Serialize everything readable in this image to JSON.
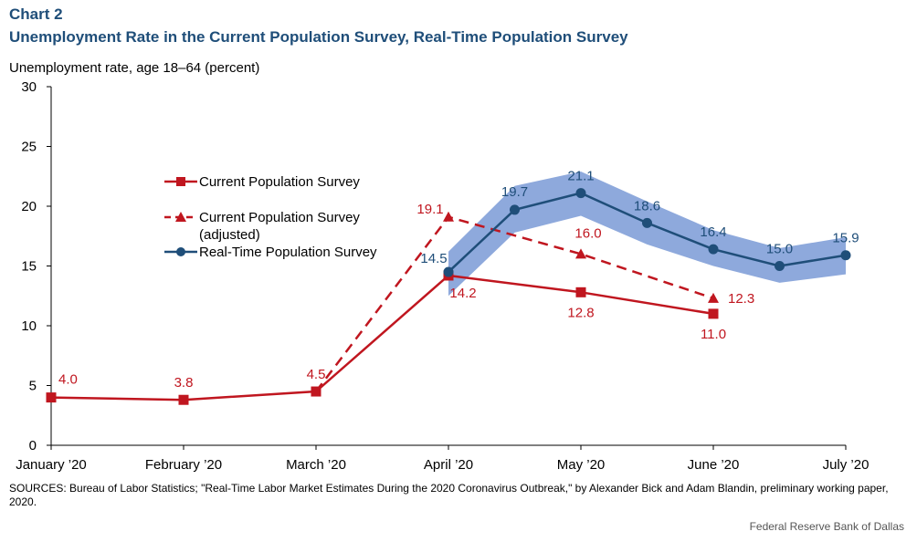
{
  "header": {
    "chart_label": "Chart 2",
    "title": "Unemployment Rate in the Current Population Survey, Real-Time Population Survey"
  },
  "footer": {
    "sources": "SOURCES: Bureau of Labor Statistics; \"Real-Time Labor Market Estimates During the 2020 Coronavirus Outbreak,\" by Alexander Bick and Adam Blandin, preliminary working paper, 2020.",
    "credit": "Federal Reserve Bank of Dallas"
  },
  "colors": {
    "cps": "#c0161f",
    "rps": "#1f4e79",
    "band": "#8ea9dc",
    "axis": "#000000"
  },
  "chart_data": {
    "type": "line",
    "title": "Unemployment Rate in the Current Population Survey, Real-Time Population Survey",
    "ylabel": "Unemployment rate, age 18–64 (percent)",
    "xlabel": "",
    "ylim": [
      0,
      30
    ],
    "yticks": [
      0,
      5,
      10,
      15,
      20,
      25,
      30
    ],
    "xlim": [
      0,
      6
    ],
    "xticks": [
      {
        "x": 0,
        "label": "January ’20"
      },
      {
        "x": 1,
        "label": "February ’20"
      },
      {
        "x": 2,
        "label": "March ’20"
      },
      {
        "x": 3,
        "label": "April ’20"
      },
      {
        "x": 4,
        "label": "May ’20"
      },
      {
        "x": 5,
        "label": "June ’20"
      },
      {
        "x": 6,
        "label": "July ’20"
      }
    ],
    "legend_position": "left-middle",
    "grid": false,
    "series": [
      {
        "name": "Current Population Survey",
        "style": "solid",
        "marker": "square",
        "points": [
          {
            "x": 0,
            "y": 4.0,
            "label": "4.0"
          },
          {
            "x": 1,
            "y": 3.8,
            "label": "3.8"
          },
          {
            "x": 2,
            "y": 4.5,
            "label": "4.5"
          },
          {
            "x": 3,
            "y": 14.2,
            "label": "14.2"
          },
          {
            "x": 4,
            "y": 12.8,
            "label": "12.8"
          },
          {
            "x": 5,
            "y": 11.0,
            "label": "11.0"
          }
        ]
      },
      {
        "name": "Current Population Survey (adjusted)",
        "style": "dashed",
        "marker": "triangle",
        "points": [
          {
            "x": 2,
            "y": 4.5,
            "label": null
          },
          {
            "x": 3,
            "y": 19.1,
            "label": "19.1"
          },
          {
            "x": 4,
            "y": 16.0,
            "label": "16.0"
          },
          {
            "x": 5,
            "y": 12.3,
            "label": "12.3"
          }
        ]
      },
      {
        "name": "Real-Time Population Survey",
        "style": "solid",
        "marker": "circle",
        "points": [
          {
            "x": 3,
            "y": 14.5,
            "label": "14.5"
          },
          {
            "x": 3.5,
            "y": 19.7,
            "label": "19.7"
          },
          {
            "x": 4,
            "y": 21.1,
            "label": "21.1"
          },
          {
            "x": 4.5,
            "y": 18.6,
            "label": "18.6"
          },
          {
            "x": 5,
            "y": 16.4,
            "label": "16.4"
          },
          {
            "x": 5.5,
            "y": 15.0,
            "label": "15.0"
          },
          {
            "x": 6,
            "y": 15.9,
            "label": "15.9"
          }
        ],
        "band": [
          {
            "x": 3,
            "low": 12.5,
            "high": 16.2
          },
          {
            "x": 3.5,
            "low": 17.8,
            "high": 21.7
          },
          {
            "x": 4,
            "low": 19.2,
            "high": 22.9
          },
          {
            "x": 4.5,
            "low": 16.8,
            "high": 20.4
          },
          {
            "x": 5,
            "low": 15.0,
            "high": 18.0
          },
          {
            "x": 5.5,
            "low": 13.6,
            "high": 16.5
          },
          {
            "x": 6,
            "low": 14.3,
            "high": 17.4
          }
        ]
      }
    ]
  }
}
